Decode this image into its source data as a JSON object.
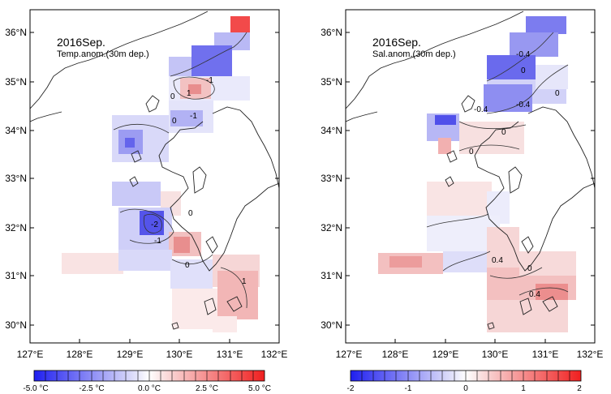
{
  "panels": [
    {
      "id": "temp",
      "title_line1": "2016Sep.",
      "title_line2": "Temp.anom.(30m dep.)",
      "lat_ticks": [
        "36°N",
        "35°N",
        "34°N",
        "33°N",
        "32°N",
        "31°N",
        "30°N"
      ],
      "lon_ticks": [
        "127°E",
        "128°E",
        "129°E",
        "130°E",
        "131°E",
        "132°E"
      ],
      "contour_labels": [
        "-1",
        "0",
        "1",
        "-1",
        "0",
        "-2",
        "-1",
        "0",
        "0",
        "1"
      ],
      "colorbar": {
        "labels": [
          "-5.0 °C",
          "-2.5 °C",
          "0.0 °C",
          "2.5 °C",
          "5.0 °C"
        ],
        "range": [
          -5.0,
          5.0
        ]
      }
    },
    {
      "id": "sal",
      "title_line1": "2016Sep.",
      "title_line2": "Sal.anom.(30m dep.)",
      "lat_ticks": [
        "36°N",
        "35°N",
        "34°N",
        "33°N",
        "32°N",
        "31°N",
        "30°N"
      ],
      "lon_ticks": [
        "127°E",
        "128°E",
        "129°E",
        "130°E",
        "131°E",
        "132°E"
      ],
      "contour_labels": [
        "-0.4",
        "0",
        "-0.4",
        "-0.4",
        "0",
        "0",
        "0",
        "0.4",
        "0",
        "0.4"
      ],
      "colorbar": {
        "labels": [
          "-2",
          "-1",
          "0",
          "1",
          "2"
        ],
        "range": [
          -2,
          2
        ]
      }
    }
  ],
  "colors": {
    "negative_strong": "#2a2af0",
    "negative_light": "#dcdcf8",
    "neutral": "#ffffff",
    "positive_light": "#f8dcdc",
    "positive_strong": "#f02a2a"
  }
}
